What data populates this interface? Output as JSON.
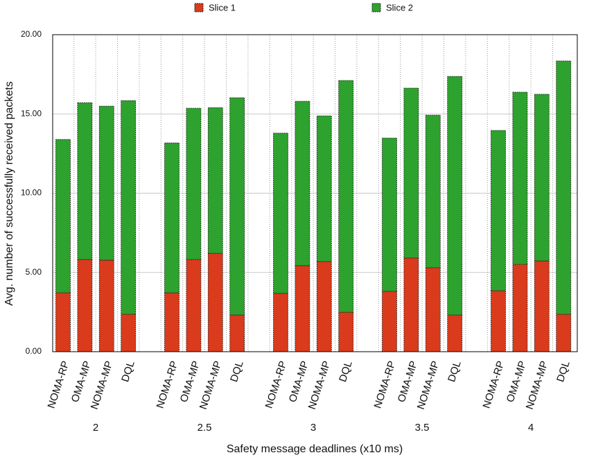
{
  "chart_data": {
    "type": "stacked_bar",
    "x_label": "Safety message deadlines (x10 ms)",
    "y_label": "Avg. number of successfully received packets",
    "groups": [
      "2",
      "2.5",
      "3",
      "3.5",
      "4"
    ],
    "categories": [
      "NOMA-RP",
      "OMA-MP",
      "NOMA-MP",
      "DQL",
      "NOMA-RP",
      "OMA-MP",
      "NOMA-MP",
      "DQL",
      "NOMA-RP",
      "OMA-MP",
      "NOMA-MP",
      "DQL",
      "NOMA-RP",
      "OMA-MP",
      "NOMA-MP",
      "DQL",
      "NOMA-RP",
      "OMA-MP",
      "NOMA-MP",
      "DQL"
    ],
    "series": [
      {
        "name": "Slice 1",
        "color": "#d93b1c",
        "values": [
          3.72,
          5.82,
          5.78,
          2.36,
          3.72,
          5.82,
          6.21,
          2.32,
          3.68,
          5.43,
          5.69,
          2.49,
          3.81,
          5.91,
          5.3,
          2.32,
          3.85,
          5.51,
          5.73,
          2.36
        ]
      },
      {
        "name": "Slice 2",
        "color": "#2ea22e",
        "values": [
          9.67,
          9.89,
          9.71,
          13.48,
          9.45,
          9.54,
          9.19,
          13.7,
          10.11,
          10.37,
          9.19,
          14.62,
          9.67,
          10.72,
          9.62,
          15.05,
          10.11,
          10.86,
          10.51,
          15.98
        ]
      }
    ],
    "ylim": [
      0,
      20
    ],
    "yticks": [
      {
        "value": 0,
        "label": "0.00"
      },
      {
        "value": 5,
        "label": "5.00"
      },
      {
        "value": 10,
        "label": "10.00"
      },
      {
        "value": 15,
        "label": "15.00"
      },
      {
        "value": 20,
        "label": "20.00"
      }
    ],
    "grid": true,
    "legend": "top"
  }
}
